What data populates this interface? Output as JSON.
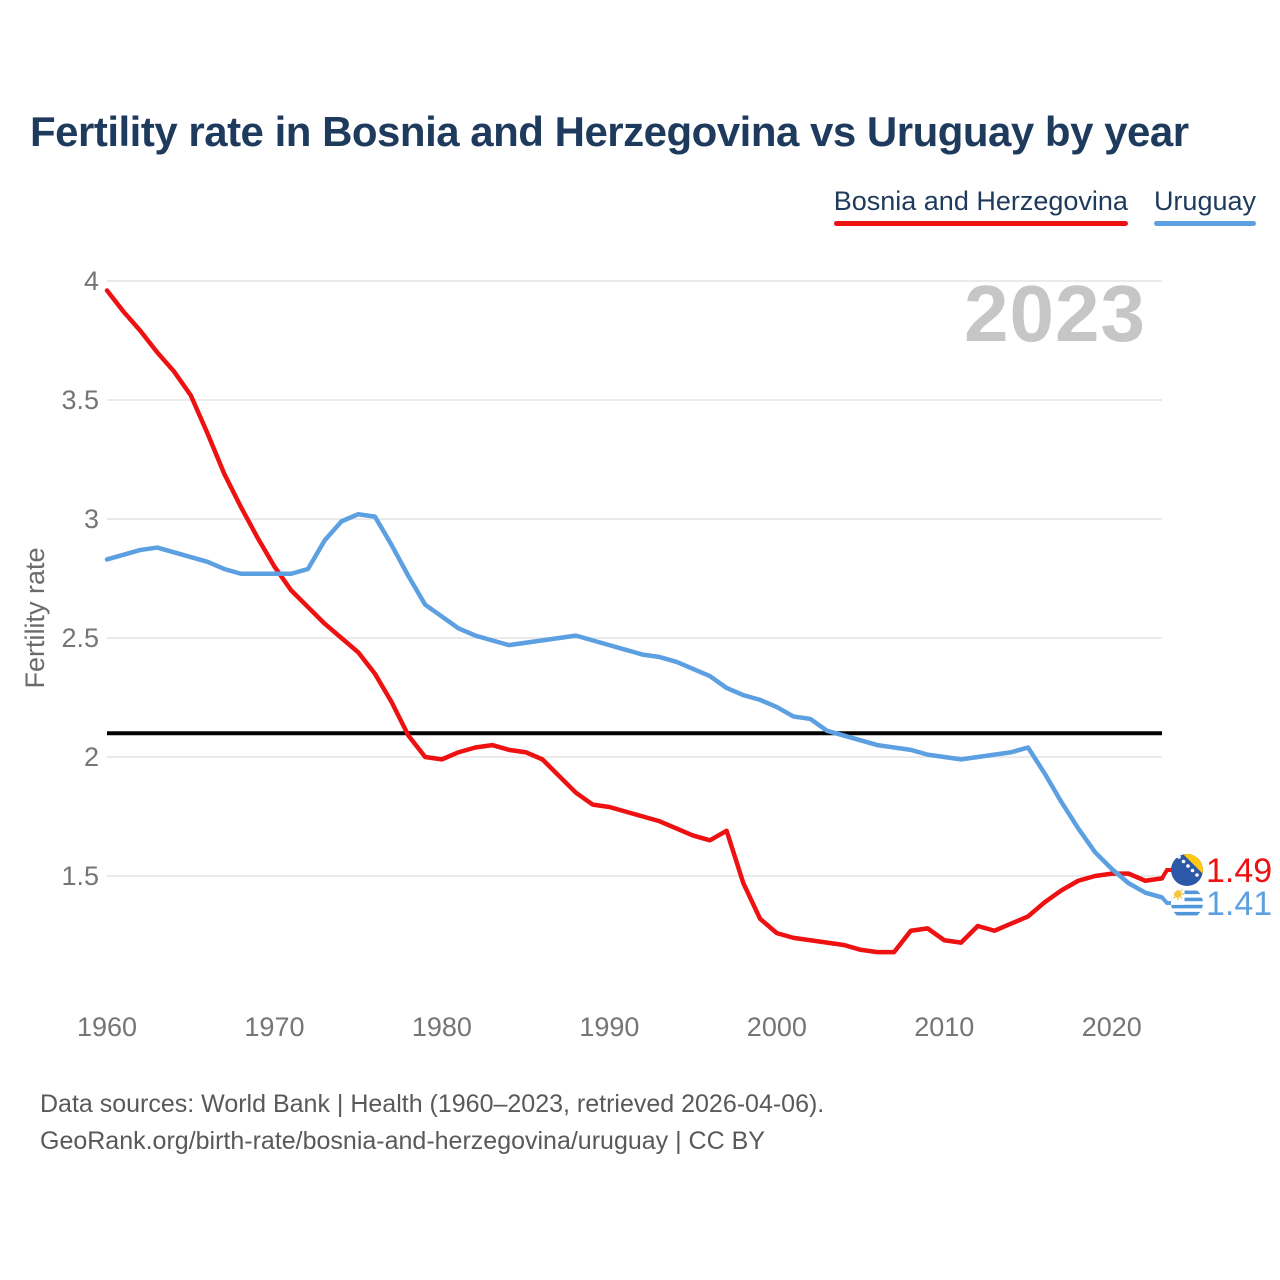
{
  "title": "Fertility rate in Bosnia and Herzegovina vs Uruguay by year",
  "watermark": "2023",
  "legend": [
    {
      "label": "Bosnia and Herzegovina",
      "color": "#ee1111"
    },
    {
      "label": "Uruguay",
      "color": "#5da0e2"
    }
  ],
  "reference_line": {
    "value": 2.1,
    "color": "#000000"
  },
  "end_labels": [
    {
      "series": "Bosnia and Herzegovina",
      "value": "1.49",
      "flag_icon": "bosnia-and-herzegovina-flag",
      "color": "#ee1111"
    },
    {
      "series": "Uruguay",
      "value": "1.41",
      "flag_icon": "uruguay-flag",
      "color": "#5da0e2"
    }
  ],
  "footer": {
    "line1": "Data sources: World Bank | Health (1960–2023, retrieved 2026-04-06).",
    "line2": "GeoRank.org/birth-rate/bosnia-and-herzegovina/uruguay | CC BY"
  },
  "colors": {
    "title": "#1e3a5c",
    "gridline": "#eaeaea",
    "tick_label": "#757575",
    "axis_label": "#6b6b6b",
    "watermark": "#c6c6c6",
    "footer": "#595959"
  },
  "chart_data": {
    "type": "line",
    "title": "Fertility rate in Bosnia and Herzegovina vs Uruguay by year",
    "xlabel": "",
    "ylabel": "Fertility rate",
    "xlim": [
      1960,
      2023
    ],
    "ylim": [
      1.1,
      4.05
    ],
    "x_ticks": [
      1960,
      1970,
      1980,
      1990,
      2000,
      2010,
      2020
    ],
    "y_ticks": [
      4,
      3.5,
      3,
      2.5,
      2,
      1.5
    ],
    "grid": "horizontal",
    "legend_position": "top-right",
    "annotation": "black horizontal replacement-level line at 2.1",
    "x": [
      1960,
      1961,
      1962,
      1963,
      1964,
      1965,
      1966,
      1967,
      1968,
      1969,
      1970,
      1971,
      1972,
      1973,
      1974,
      1975,
      1976,
      1977,
      1978,
      1979,
      1980,
      1981,
      1982,
      1983,
      1984,
      1985,
      1986,
      1987,
      1988,
      1989,
      1990,
      1991,
      1992,
      1993,
      1994,
      1995,
      1996,
      1997,
      1998,
      1999,
      2000,
      2001,
      2002,
      2003,
      2004,
      2005,
      2006,
      2007,
      2008,
      2009,
      2010,
      2011,
      2012,
      2013,
      2014,
      2015,
      2016,
      2017,
      2018,
      2019,
      2020,
      2021,
      2022,
      2023
    ],
    "series": [
      {
        "name": "Bosnia and Herzegovina",
        "color": "#ee1111",
        "final_value": 1.49,
        "values": [
          3.96,
          3.87,
          3.79,
          3.7,
          3.62,
          3.52,
          3.36,
          3.19,
          3.05,
          2.92,
          2.8,
          2.7,
          2.63,
          2.56,
          2.5,
          2.44,
          2.35,
          2.23,
          2.09,
          2.0,
          1.99,
          2.02,
          2.04,
          2.05,
          2.03,
          2.02,
          1.99,
          1.92,
          1.85,
          1.8,
          1.79,
          1.77,
          1.75,
          1.73,
          1.7,
          1.67,
          1.65,
          1.69,
          1.47,
          1.32,
          1.26,
          1.24,
          1.23,
          1.22,
          1.21,
          1.19,
          1.18,
          1.18,
          1.27,
          1.28,
          1.23,
          1.22,
          1.29,
          1.27,
          1.3,
          1.33,
          1.39,
          1.44,
          1.48,
          1.5,
          1.51,
          1.51,
          1.48,
          1.49
        ]
      },
      {
        "name": "Uruguay",
        "color": "#5da0e2",
        "final_value": 1.41,
        "values": [
          2.83,
          2.85,
          2.87,
          2.88,
          2.86,
          2.84,
          2.82,
          2.79,
          2.77,
          2.77,
          2.77,
          2.77,
          2.79,
          2.91,
          2.99,
          3.02,
          3.01,
          2.89,
          2.76,
          2.64,
          2.59,
          2.54,
          2.51,
          2.49,
          2.47,
          2.48,
          2.49,
          2.5,
          2.51,
          2.49,
          2.47,
          2.45,
          2.43,
          2.42,
          2.4,
          2.37,
          2.34,
          2.29,
          2.26,
          2.24,
          2.21,
          2.17,
          2.16,
          2.11,
          2.09,
          2.07,
          2.05,
          2.04,
          2.03,
          2.01,
          2.0,
          1.99,
          2.0,
          2.01,
          2.02,
          2.04,
          1.93,
          1.81,
          1.7,
          1.6,
          1.53,
          1.47,
          1.43,
          1.41
        ]
      }
    ]
  }
}
